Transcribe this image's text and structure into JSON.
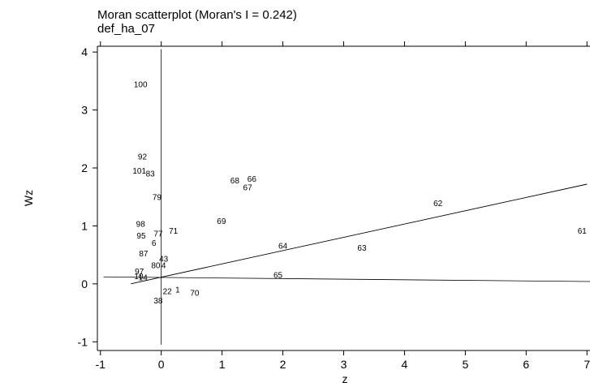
{
  "chart_data": {
    "type": "scatter",
    "title": "Moran scatterplot (Moran's I = 0.242)",
    "subtitle": "def_ha_07",
    "xlabel": "z",
    "ylabel": "Wz",
    "xlim": [
      -1.05,
      7.05
    ],
    "ylim": [
      -1.15,
      4.1
    ],
    "xticks": [
      -1,
      0,
      1,
      2,
      3,
      4,
      5,
      6,
      7
    ],
    "yticks": [
      -1,
      0,
      1,
      2,
      3,
      4
    ],
    "reference_lines": {
      "x": 0,
      "y": 0.12
    },
    "regression_line": {
      "x0": -0.5,
      "y0": 0.0,
      "x1": 7.0,
      "y1": 1.72
    },
    "points": [
      {
        "label": "100",
        "x": -0.34,
        "y": 3.45
      },
      {
        "label": "92",
        "x": -0.31,
        "y": 2.2
      },
      {
        "label": "101",
        "x": -0.36,
        "y": 1.96
      },
      {
        "label": "83",
        "x": -0.18,
        "y": 1.91
      },
      {
        "label": "79",
        "x": -0.07,
        "y": 1.5
      },
      {
        "label": "98",
        "x": -0.34,
        "y": 1.04
      },
      {
        "label": "95",
        "x": -0.33,
        "y": 0.84
      },
      {
        "label": "77",
        "x": -0.05,
        "y": 0.87
      },
      {
        "label": "71",
        "x": 0.2,
        "y": 0.92
      },
      {
        "label": "6",
        "x": -0.12,
        "y": 0.71
      },
      {
        "label": "87",
        "x": -0.29,
        "y": 0.53
      },
      {
        "label": "80",
        "x": -0.09,
        "y": 0.33
      },
      {
        "label": "4",
        "x": 0.04,
        "y": 0.33
      },
      {
        "label": "43",
        "x": 0.04,
        "y": 0.44
      },
      {
        "label": "97",
        "x": -0.36,
        "y": 0.22
      },
      {
        "label": "10",
        "x": -0.37,
        "y": 0.14
      },
      {
        "label": "14",
        "x": -0.3,
        "y": 0.12
      },
      {
        "label": "22",
        "x": 0.1,
        "y": -0.12
      },
      {
        "label": "1",
        "x": 0.27,
        "y": -0.09
      },
      {
        "label": "70",
        "x": 0.55,
        "y": -0.15
      },
      {
        "label": "38",
        "x": -0.05,
        "y": -0.28
      },
      {
        "label": "68",
        "x": 1.21,
        "y": 1.79
      },
      {
        "label": "66",
        "x": 1.49,
        "y": 1.82
      },
      {
        "label": "67",
        "x": 1.42,
        "y": 1.67
      },
      {
        "label": "69",
        "x": 0.99,
        "y": 1.09
      },
      {
        "label": "62",
        "x": 4.55,
        "y": 1.4
      },
      {
        "label": "64",
        "x": 2.0,
        "y": 0.66
      },
      {
        "label": "63",
        "x": 3.3,
        "y": 0.63
      },
      {
        "label": "65",
        "x": 1.92,
        "y": 0.16
      },
      {
        "label": "61",
        "x": 6.92,
        "y": 0.92
      }
    ]
  }
}
